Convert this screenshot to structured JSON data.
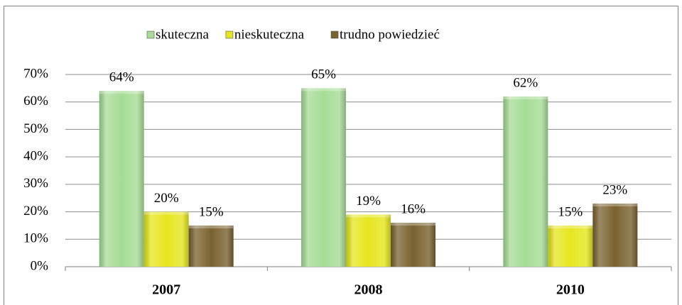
{
  "chart_data": {
    "type": "bar",
    "categories": [
      "2007",
      "2008",
      "2010"
    ],
    "series": [
      {
        "name": "skuteczna",
        "color": "#a6dc96",
        "values": [
          64,
          65,
          62
        ],
        "value_labels": [
          "64%",
          "65%",
          "62%"
        ]
      },
      {
        "name": "nieskuteczna",
        "color": "#e6e61e",
        "values": [
          20,
          19,
          15
        ],
        "value_labels": [
          "20%",
          "19%",
          "15%"
        ]
      },
      {
        "name": "trudno powiedzieć",
        "color": "#7a6230",
        "values": [
          15,
          16,
          23
        ],
        "value_labels": [
          "15%",
          "16%",
          "23%"
        ]
      }
    ],
    "ylim": [
      0,
      70
    ],
    "yticks": [
      {
        "value": 0,
        "label": "0%"
      },
      {
        "value": 10,
        "label": "10%"
      },
      {
        "value": 20,
        "label": "20%"
      },
      {
        "value": 30,
        "label": "30%"
      },
      {
        "value": 40,
        "label": "40%"
      },
      {
        "value": 50,
        "label": "50%"
      },
      {
        "value": 60,
        "label": "60%"
      },
      {
        "value": 70,
        "label": "70%"
      }
    ],
    "grid": true,
    "legend": "top"
  }
}
